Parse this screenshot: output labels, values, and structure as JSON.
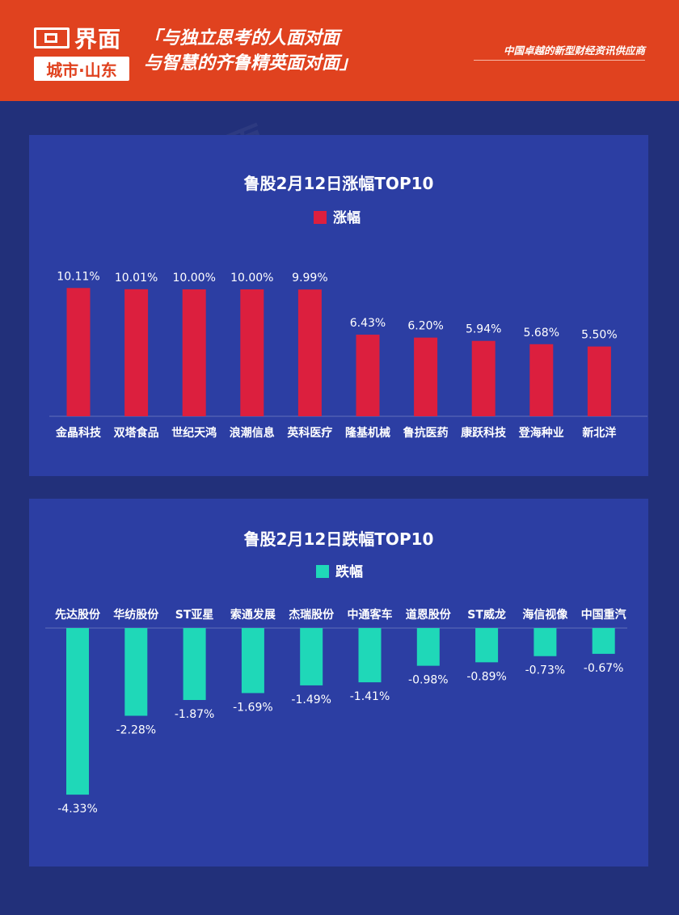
{
  "header": {
    "logo_brand": "界面",
    "logo_sub": "城市·山东",
    "slogan_line1": "「与独立思考的人面对面",
    "slogan_line2": "与智慧的齐鲁精英面对面」",
    "tagline": "中国卓越的新型财经资讯供应商",
    "bg_color": "#e0421f"
  },
  "chart_data": [
    {
      "type": "bar",
      "title": "鲁股2月12日涨幅TOP10",
      "legend": "涨幅",
      "color": "#dc1f3e",
      "categories": [
        "金晶科技",
        "双塔食品",
        "世纪天鸿",
        "浪潮信息",
        "英科医疗",
        "隆基机械",
        "鲁抗医药",
        "康跃科技",
        "登海种业",
        "新北洋"
      ],
      "values": [
        10.11,
        10.01,
        10.0,
        10.0,
        9.99,
        6.43,
        6.2,
        5.94,
        5.68,
        5.5
      ],
      "labels": [
        "10.11%",
        "10.01%",
        "10.00%",
        "10.00%",
        "9.99%",
        "6.43%",
        "6.20%",
        "5.94%",
        "5.68%",
        "5.50%"
      ],
      "ylim": [
        0,
        11.5
      ]
    },
    {
      "type": "bar",
      "title": "鲁股2月12日跌幅TOP10",
      "legend": "跌幅",
      "color": "#1fd8b8",
      "categories": [
        "先达股份",
        "华纺股份",
        "ST亚星",
        "索通发展",
        "杰瑞股份",
        "中通客车",
        "道恩股份",
        "ST威龙",
        "海信视像",
        "中国重汽"
      ],
      "values": [
        -4.33,
        -2.28,
        -1.87,
        -1.69,
        -1.49,
        -1.41,
        -0.98,
        -0.89,
        -0.73,
        -0.67
      ],
      "labels": [
        "-4.33%",
        "-2.28%",
        "-1.87%",
        "-1.69%",
        "-1.49%",
        "-1.41%",
        "-0.98%",
        "-0.89%",
        "-0.73%",
        "-0.67%"
      ],
      "ylim": [
        -5,
        0
      ]
    }
  ]
}
